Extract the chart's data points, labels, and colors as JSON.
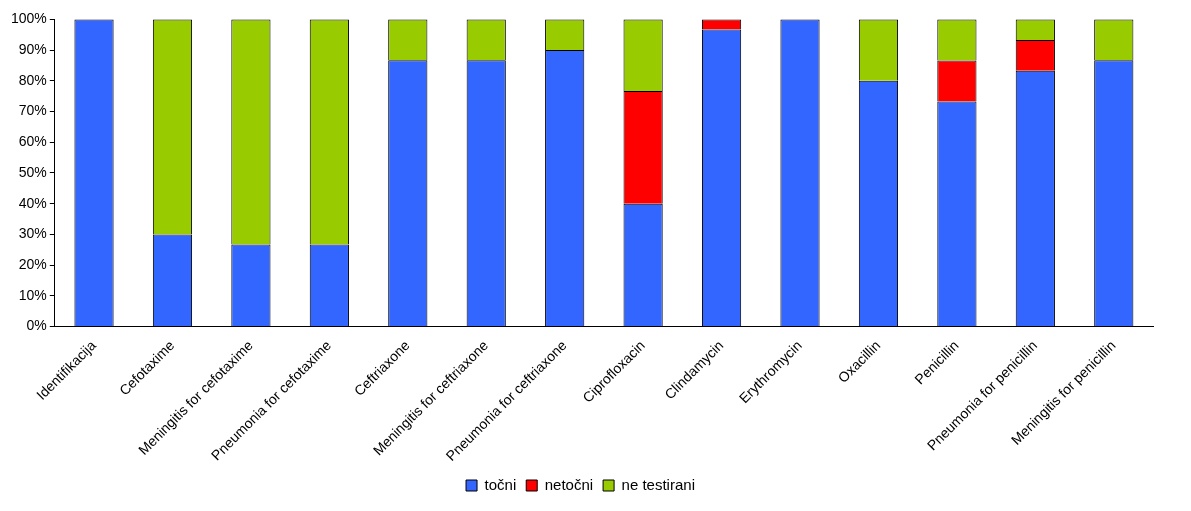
{
  "chart_data": {
    "type": "bar",
    "stacked": true,
    "categories": [
      "Identifikacija",
      "Cefotaxime",
      "Meningitis for cefotaxime",
      "Pneumonia for cefotaxime",
      "Ceftriaxone",
      "Meningitis for ceftriaxone",
      "Pneumonia for ceftriaxone",
      "Ciprofloxacin",
      "Clindamycin",
      "Erythromycin",
      "Oxacillin",
      "Penicillin",
      "Pneumonia for penicillin",
      "Meningitis for penicillin"
    ],
    "series": [
      {
        "name": "točni",
        "color": "#3366ff",
        "values": [
          100,
          30,
          26.7,
          26.7,
          86.7,
          86.7,
          90,
          40,
          96.7,
          100,
          80,
          73.3,
          83.3,
          86.7
        ]
      },
      {
        "name": "netočni",
        "color": "#ff0000",
        "values": [
          0,
          0,
          0,
          0,
          0,
          0,
          0,
          36.7,
          3.3,
          0,
          0,
          13.3,
          10,
          0
        ]
      },
      {
        "name": "ne testirani",
        "color": "#99cc00",
        "values": [
          0,
          70,
          73.3,
          73.3,
          13.3,
          13.3,
          10,
          23.3,
          0,
          0,
          20,
          13.4,
          6.7,
          13.3
        ]
      }
    ],
    "ylim": [
      0,
      100
    ],
    "yticks": [
      {
        "value": 0,
        "label": "0%"
      },
      {
        "value": 10,
        "label": "10%"
      },
      {
        "value": 20,
        "label": "20%"
      },
      {
        "value": 30,
        "label": "30%"
      },
      {
        "value": 40,
        "label": "40%"
      },
      {
        "value": 50,
        "label": "50%"
      },
      {
        "value": 60,
        "label": "60%"
      },
      {
        "value": 70,
        "label": "70%"
      },
      {
        "value": 80,
        "label": "80%"
      },
      {
        "value": 90,
        "label": "90%"
      },
      {
        "value": 100,
        "label": "100%"
      }
    ],
    "grid": false,
    "legend": "bottom"
  }
}
